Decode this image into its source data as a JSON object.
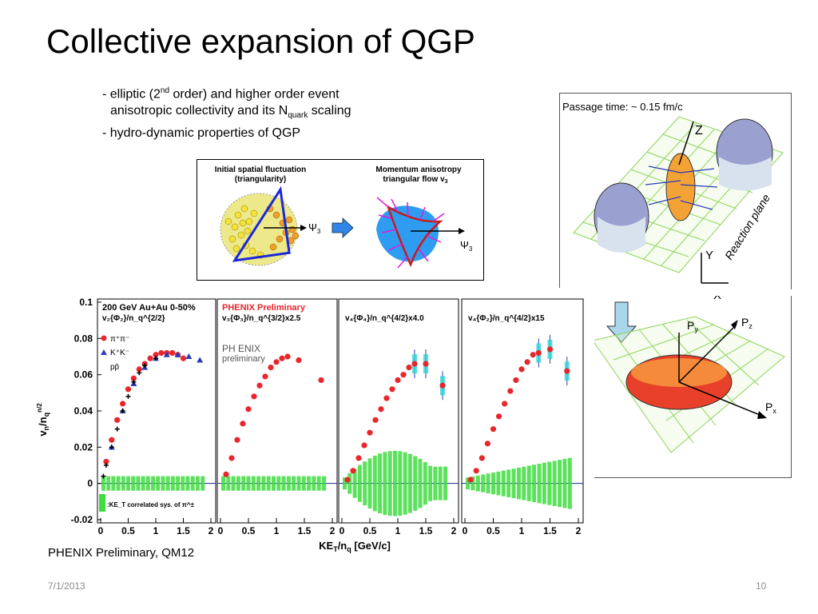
{
  "slide": {
    "title": "Collective expansion of QGP",
    "bullets": {
      "b1_pre": "- elliptic (2",
      "b1_sup": "nd",
      "b1_post": " order) and higher order event",
      "b2_pre": "anisotropic collectivity and its N",
      "b2_sub": "quark",
      "b2_post": " scaling",
      "b3": "- hydro-dynamic properties of QGP"
    },
    "caption": "PHENIX Preliminary, QM12",
    "footer_date": "7/1/2013",
    "footer_page": "10"
  },
  "triangle_figure": {
    "left_title_1": "Initial spatial fluctuation",
    "left_title_2": "(triangularity)",
    "right_title_1": "Momentum anisotropy",
    "right_title_2": "triangular flow v",
    "right_title_sub": "3",
    "psi": "Ψ",
    "psi_sub": "3"
  },
  "collision_figure": {
    "passage_time": "Passage time: ~ 0.15 fm/c",
    "reaction_plane": "Reaction plane",
    "axis_z": "Z",
    "axis_y": "Y",
    "axis_x": "X",
    "p_y": "P",
    "p_y_sub": "y",
    "p_z": "P",
    "p_z_sub": "z",
    "p_x": "P",
    "p_x_sub": "x"
  },
  "plots": {
    "y_axis_label": "v_n/n_q^{n/2}",
    "x_axis_label": "KE_T/n_q [GeV/c]",
    "y_ticks": [
      "0.1",
      "0.08",
      "0.06",
      "0.04",
      "0.02",
      "0",
      "-0.02"
    ],
    "x_ticks": [
      "0",
      "0.5",
      "1",
      "1.5",
      "2"
    ],
    "panel1_header": "200 GeV Au+Au 0-50%",
    "panel1_label": "v₂{Φ₂}/n_q^{2/2}",
    "legend_pi": "π⁺π⁻",
    "legend_k": "K⁺K⁻",
    "legend_p": "pp̄",
    "sys_note": ":KE_T correlated sys. of π^±",
    "panel2_header": "PHENIX Preliminary",
    "panel2_label": "v₃{Φ₃}/n_q^{3/2}x2.5",
    "panel2_logo": "PH ENIX",
    "panel2_logo_sub": "preliminary",
    "panel3_label": "v₄{Φ₄}/n_q^{4/2}x4.0",
    "panel4_label": "v₄{Φ₂}/n_q^{4/2}x15",
    "colors": {
      "pi": "#e8262c",
      "k": "#2a3bb8",
      "p": "#000000",
      "sys": "#3fdc3f",
      "error_band": "#2fd4d4"
    }
  },
  "chart_data": [
    {
      "type": "scatter",
      "title": "200 GeV Au+Au 0-50%",
      "ylabel": "v_n/n_q^{n/2}",
      "xlabel": "KE_T/n_q [GeV/c]",
      "xlim": [
        0,
        2
      ],
      "ylim": [
        -0.02,
        0.1
      ],
      "series": [
        {
          "name": "π⁺π⁻",
          "x": [
            0.1,
            0.2,
            0.3,
            0.4,
            0.5,
            0.6,
            0.7,
            0.8,
            0.9,
            1.0,
            1.1,
            1.2,
            1.3,
            1.4,
            1.5
          ],
          "y": [
            0.012,
            0.024,
            0.035,
            0.044,
            0.052,
            0.058,
            0.063,
            0.066,
            0.069,
            0.071,
            0.072,
            0.072,
            0.072,
            0.071,
            0.069
          ]
        },
        {
          "name": "K⁺K⁻",
          "x": [
            0.2,
            0.4,
            0.6,
            0.8,
            1.0,
            1.2,
            1.4,
            1.6,
            1.8
          ],
          "y": [
            0.02,
            0.04,
            0.055,
            0.064,
            0.069,
            0.071,
            0.071,
            0.07,
            0.068
          ]
        },
        {
          "name": "pp̄",
          "x": [
            0.05,
            0.1,
            0.2,
            0.3,
            0.4,
            0.5,
            0.6,
            0.7,
            0.8,
            1.0
          ],
          "y": [
            0.004,
            0.01,
            0.02,
            0.03,
            0.04,
            0.048,
            0.056,
            0.061,
            0.065,
            0.069
          ]
        }
      ]
    },
    {
      "type": "scatter",
      "title": "v₃{Φ₃}/n_q^{3/2}x2.5",
      "xlim": [
        0,
        2
      ],
      "ylim": [
        -0.02,
        0.1
      ],
      "series": [
        {
          "name": "π⁺π⁻",
          "x": [
            0.1,
            0.2,
            0.3,
            0.4,
            0.5,
            0.6,
            0.7,
            0.8,
            0.9,
            1.0,
            1.1,
            1.2,
            1.4,
            1.8
          ],
          "y": [
            0.005,
            0.014,
            0.024,
            0.033,
            0.041,
            0.048,
            0.054,
            0.059,
            0.064,
            0.067,
            0.069,
            0.07,
            0.068,
            0.057
          ]
        }
      ]
    },
    {
      "type": "scatter",
      "title": "v₄{Φ₄}/n_q^{4/2}x4.0",
      "xlim": [
        0,
        2
      ],
      "ylim": [
        -0.02,
        0.1
      ],
      "series": [
        {
          "name": "π⁺π⁻",
          "x": [
            0.1,
            0.2,
            0.3,
            0.4,
            0.5,
            0.6,
            0.7,
            0.8,
            0.9,
            1.0,
            1.1,
            1.2,
            1.3,
            1.5,
            1.8
          ],
          "y": [
            0.002,
            0.007,
            0.014,
            0.021,
            0.028,
            0.035,
            0.041,
            0.047,
            0.052,
            0.057,
            0.06,
            0.064,
            0.066,
            0.066,
            0.054
          ]
        }
      ]
    },
    {
      "type": "scatter",
      "title": "v₄{Φ₂}/n_q^{4/2}x15",
      "xlim": [
        0,
        2
      ],
      "ylim": [
        -0.02,
        0.1
      ],
      "series": [
        {
          "name": "π⁺π⁻",
          "x": [
            0.1,
            0.2,
            0.3,
            0.4,
            0.5,
            0.6,
            0.7,
            0.8,
            0.9,
            1.0,
            1.1,
            1.2,
            1.3,
            1.5,
            1.8
          ],
          "y": [
            0.002,
            0.007,
            0.014,
            0.022,
            0.03,
            0.037,
            0.044,
            0.051,
            0.057,
            0.063,
            0.067,
            0.071,
            0.072,
            0.074,
            0.062
          ]
        }
      ]
    }
  ]
}
